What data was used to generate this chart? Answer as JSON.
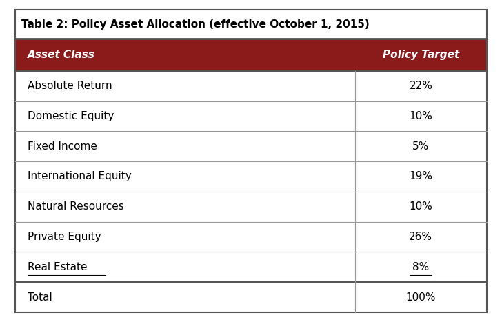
{
  "title": "Table 2: Policy Asset Allocation (effective October 1, 2015)",
  "header": [
    "Asset Class",
    "Policy Target"
  ],
  "rows": [
    [
      "Absolute Return",
      "22%"
    ],
    [
      "Domestic Equity",
      "10%"
    ],
    [
      "Fixed Income",
      "5%"
    ],
    [
      "International Equity",
      "19%"
    ],
    [
      "Natural Resources",
      "10%"
    ],
    [
      "Private Equity",
      "26%"
    ],
    [
      "Real Estate",
      "8%"
    ],
    [
      "Total",
      "100%"
    ]
  ],
  "underlined_rows": [
    6
  ],
  "header_bg": "#8B1A1A",
  "header_text_color": "#FFFFFF",
  "title_text_color": "#000000",
  "row_bg": "#FFFFFF",
  "border_color": "#999999",
  "title_fontsize": 11,
  "header_fontsize": 11,
  "row_fontsize": 11,
  "outer_border_color": "#555555",
  "fig_bg": "#FFFFFF"
}
